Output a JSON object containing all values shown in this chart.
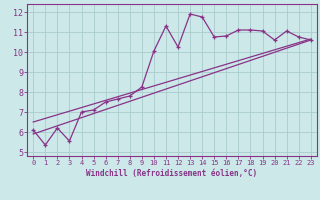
{
  "xlabel": "Windchill (Refroidissement éolien,°C)",
  "bg_color": "#cce8e8",
  "line_color": "#883388",
  "grid_color": "#aacccc",
  "xlim": [
    -0.5,
    23.5
  ],
  "ylim": [
    4.8,
    12.4
  ],
  "xticks": [
    0,
    1,
    2,
    3,
    4,
    5,
    6,
    7,
    8,
    9,
    10,
    11,
    12,
    13,
    14,
    15,
    16,
    17,
    18,
    19,
    20,
    21,
    22,
    23
  ],
  "yticks": [
    5,
    6,
    7,
    8,
    9,
    10,
    11,
    12
  ],
  "curve1_x": [
    0,
    1,
    2,
    3,
    4,
    5,
    6,
    7,
    8,
    9,
    10,
    11,
    12,
    13,
    14,
    15,
    16,
    17,
    18,
    19,
    20,
    21,
    22,
    23
  ],
  "curve1_y": [
    6.1,
    5.35,
    6.2,
    5.55,
    7.0,
    7.1,
    7.5,
    7.65,
    7.8,
    8.25,
    10.05,
    11.3,
    10.25,
    11.9,
    11.75,
    10.75,
    10.8,
    11.1,
    11.1,
    11.05,
    10.6,
    11.05,
    10.75,
    10.6
  ],
  "line1_x": [
    0,
    23
  ],
  "line1_y": [
    5.9,
    10.6
  ],
  "line2_x": [
    0,
    23
  ],
  "line2_y": [
    6.5,
    10.65
  ]
}
